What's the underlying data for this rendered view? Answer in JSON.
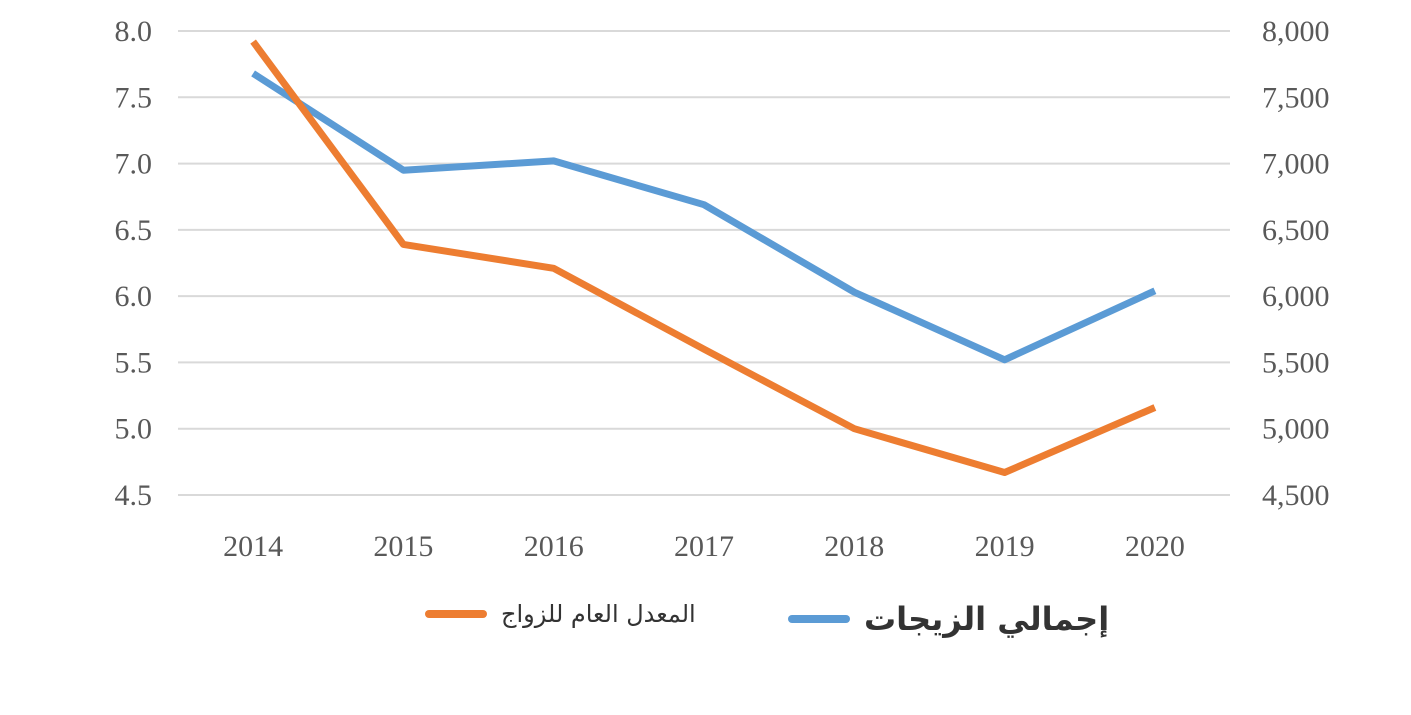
{
  "chart_data": {
    "type": "line",
    "title": "",
    "xlabel": "",
    "ylabel": "",
    "categories": [
      "2014",
      "2015",
      "2016",
      "2017",
      "2018",
      "2019",
      "2020"
    ],
    "y_left": {
      "lim": [
        4.5,
        8.0
      ],
      "ticks": [
        "8.0",
        "7.5",
        "7.0",
        "6.5",
        "6.0",
        "5.5",
        "5.0",
        "4.5"
      ]
    },
    "y_right": {
      "lim": [
        4500,
        8000
      ],
      "ticks": [
        "8,000",
        "7,500",
        "7,000",
        "6,500",
        "6,000",
        "5,500",
        "5,000",
        "4,500"
      ]
    },
    "grid": true,
    "legend_position": "bottom",
    "series": [
      {
        "name": "المعدل العام للزواج",
        "axis": "left",
        "color": "#ED7D31",
        "values": [
          7.92,
          6.39,
          6.21,
          5.6,
          5.0,
          4.67,
          5.16
        ]
      },
      {
        "name": "إجمالي الزيجات",
        "axis": "right",
        "color": "#5B9BD5",
        "values": [
          7680,
          6950,
          7020,
          6690,
          6030,
          5520,
          6040
        ]
      }
    ]
  }
}
